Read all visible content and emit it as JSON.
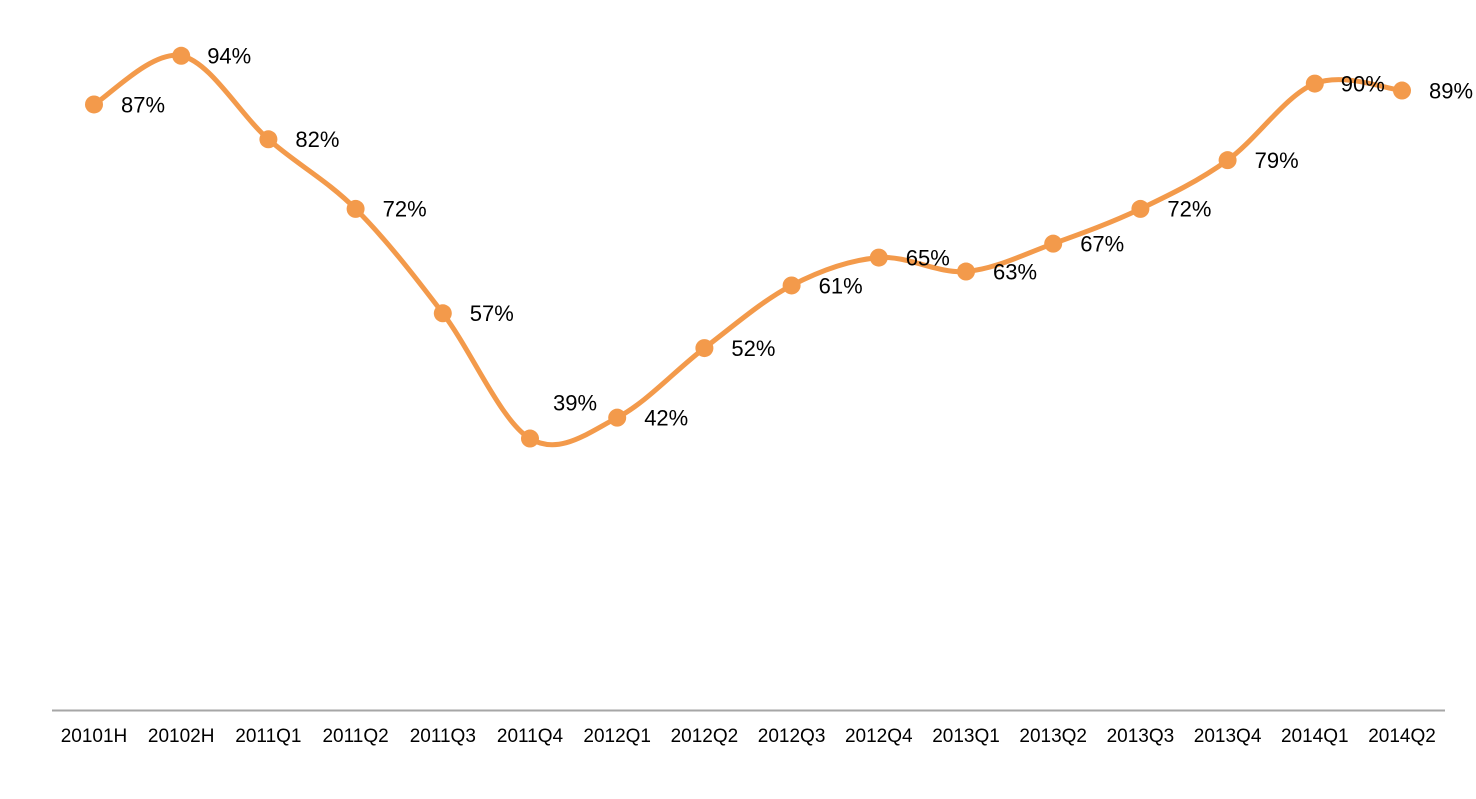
{
  "chart_data": {
    "type": "line",
    "categories": [
      "20101H",
      "20102H",
      "2011Q1",
      "2011Q2",
      "2011Q3",
      "2011Q4",
      "2012Q1",
      "2012Q2",
      "2012Q3",
      "2012Q4",
      "2013Q1",
      "2013Q2",
      "2013Q3",
      "2013Q4",
      "2014Q1",
      "2014Q2"
    ],
    "values": [
      87,
      94,
      82,
      72,
      57,
      39,
      42,
      52,
      61,
      65,
      63,
      67,
      72,
      79,
      90,
      89
    ],
    "value_labels": [
      "87%",
      "94%",
      "82%",
      "72%",
      "57%",
      "39%",
      "42%",
      "52%",
      "61%",
      "65%",
      "63%",
      "67%",
      "72%",
      "79%",
      "90%",
      "89%"
    ],
    "color": "#f39a4b",
    "smooth": true,
    "ylim": [
      0,
      100
    ]
  }
}
